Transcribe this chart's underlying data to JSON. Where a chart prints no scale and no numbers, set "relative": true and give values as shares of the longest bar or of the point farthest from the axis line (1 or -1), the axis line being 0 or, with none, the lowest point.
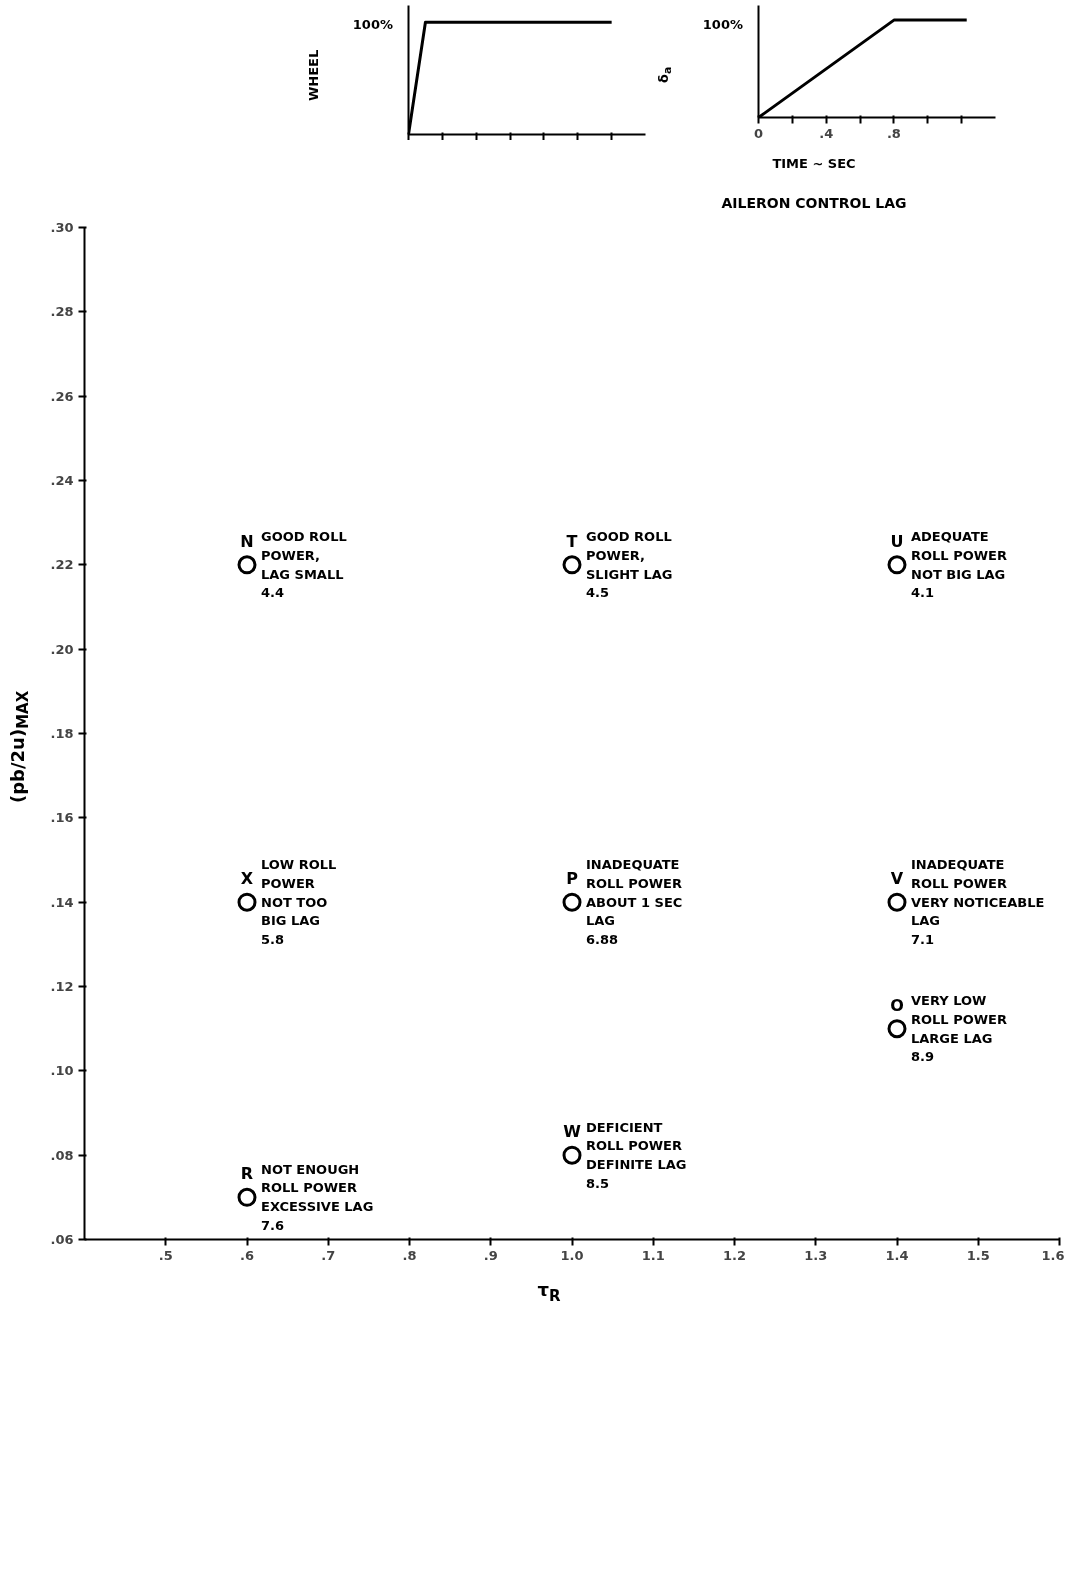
{
  "chart_data": [
    {
      "type": "scatter",
      "xlabel": "τ$_{R}$",
      "ylabel": "(pb/2u)$_{MAX}$",
      "marker": "circle",
      "grid": false,
      "x": [
        0.6,
        1.0,
        1.4,
        0.6,
        1.0,
        1.4,
        0.6,
        1.0,
        1.4
      ],
      "series": [
        {
          "color": "#000000",
          "values": [
            0.22,
            0.22,
            0.22,
            0.14,
            0.14,
            0.14,
            0.07,
            0.08,
            0.11
          ]
        }
      ],
      "xlim": [
        0.4,
        1.6
      ],
      "xticks": [
        {
          "value": 0.5,
          "label": ".5"
        },
        {
          "value": 0.6,
          "label": ".6"
        },
        {
          "value": 0.7,
          "label": ".7"
        },
        {
          "value": 0.8,
          "label": ".8"
        },
        {
          "value": 0.9,
          "label": ".9"
        },
        {
          "value": 1.0,
          "label": "1.0"
        },
        {
          "value": 1.1,
          "label": "1.1"
        },
        {
          "value": 1.2,
          "label": "1.2"
        },
        {
          "value": 1.3,
          "label": "1.3"
        },
        {
          "value": 1.4,
          "label": "1.4"
        },
        {
          "value": 1.5,
          "label": "1.5"
        },
        {
          "value": 1.6,
          "label": "1.6"
        }
      ],
      "ylim": [
        0.06,
        0.3
      ],
      "yticks": [
        {
          "value": 0.06,
          "label": ".06"
        },
        {
          "value": 0.08,
          "label": ".08"
        },
        {
          "value": 0.1,
          "label": ".10"
        },
        {
          "value": 0.12,
          "label": ".12"
        },
        {
          "value": 0.14,
          "label": ".14"
        },
        {
          "value": 0.16,
          "label": ".16"
        },
        {
          "value": 0.18,
          "label": ".18"
        },
        {
          "value": 0.2,
          "label": ".20"
        },
        {
          "value": 0.22,
          "label": ".22"
        },
        {
          "value": 0.24,
          "label": ".24"
        },
        {
          "value": 0.26,
          "label": ".26"
        },
        {
          "value": 0.28,
          "label": ".28"
        },
        {
          "value": 0.3,
          "label": ".30"
        }
      ],
      "annotations": [
        {
          "text": "N",
          "x": 0.6,
          "y": 0.22
        },
        {
          "text": "GOOD ROLL\nPOWER,\nLAG SMALL\n4.4",
          "x": 0.6,
          "y": 0.22
        },
        {
          "text": "T",
          "x": 1.0,
          "y": 0.22
        },
        {
          "text": "GOOD ROLL\nPOWER,\nSLIGHT LAG\n4.5",
          "x": 1.0,
          "y": 0.22
        },
        {
          "text": "U",
          "x": 1.4,
          "y": 0.22
        },
        {
          "text": "ADEQUATE\nROLL POWER\nNOT BIG LAG\n4.1",
          "x": 1.4,
          "y": 0.22
        },
        {
          "text": "X",
          "x": 0.6,
          "y": 0.14
        },
        {
          "text": "LOW ROLL\nPOWER\nNOT TOO\nBIG LAG\n5.8",
          "x": 0.6,
          "y": 0.14
        },
        {
          "text": "P",
          "x": 1.0,
          "y": 0.14
        },
        {
          "text": "INADEQUATE\nROLL POWER\nABOUT 1 SEC\nLAG\n6.88",
          "x": 1.0,
          "y": 0.14
        },
        {
          "text": "V",
          "x": 1.4,
          "y": 0.14
        },
        {
          "text": "INADEQUATE\nROLL POWER\nVERY NOTICEABLE\nLAG\n7.1",
          "x": 1.4,
          "y": 0.14
        },
        {
          "text": "R",
          "x": 0.6,
          "y": 0.07
        },
        {
          "text": "NOT ENOUGH\nROLL POWER\nEXCESSIVE LAG\n7.6",
          "x": 0.6,
          "y": 0.07
        },
        {
          "text": "W",
          "x": 1.0,
          "y": 0.08
        },
        {
          "text": "DEFICIENT\nROLL POWER\nDEFINITE LAG\n8.5",
          "x": 1.0,
          "y": 0.08
        },
        {
          "text": "O",
          "x": 1.4,
          "y": 0.11
        },
        {
          "text": "VERY LOW\nROLL POWER\nLARGE LAG\n8.9",
          "x": 1.4,
          "y": 0.11
        }
      ]
    },
    {
      "type": "line",
      "ylabel": "WHEEL",
      "relative": true,
      "tick_labels": false,
      "annotations": [
        "100%"
      ],
      "categories": [
        null,
        null,
        null,
        null,
        null,
        null,
        null,
        null,
        null,
        null,
        null,
        null,
        null
      ],
      "series": [
        {
          "color": "#000000",
          "values": [
            0,
            1,
            1,
            1,
            1,
            1,
            1,
            1,
            1,
            1,
            1,
            1,
            1
          ]
        }
      ]
    },
    {
      "type": "line",
      "ylabel": "δ$_{a}$",
      "xlabel": "TIME ~ SEC",
      "relative": true,
      "tick_labels": "x",
      "annotations": [
        "100%",
        "AILERON CONTROL LAG"
      ],
      "x": [
        0,
        0.8,
        1.23
      ],
      "series": [
        {
          "color": "#000000",
          "values": [
            0,
            1,
            1
          ]
        }
      ],
      "xlim": [
        0,
        1.4
      ],
      "xticks": [
        {
          "value": 0,
          "label": "0"
        },
        {
          "value": 0.2,
          "label": null
        },
        {
          "value": 0.4,
          "label": ".4"
        },
        {
          "value": 0.6,
          "label": null
        },
        {
          "value": 0.8,
          "label": ".8"
        },
        {
          "value": 1.0,
          "label": null
        },
        {
          "value": 1.2,
          "label": null
        }
      ]
    }
  ]
}
